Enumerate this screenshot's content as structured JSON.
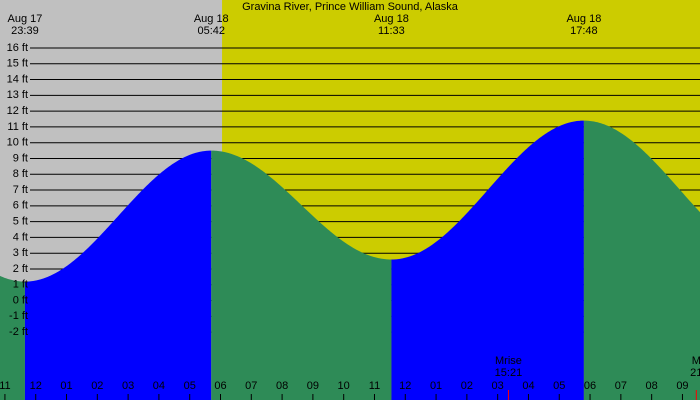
{
  "chart_data": {
    "type": "tide",
    "title": "Gravina River, Prince William Sound, Alaska",
    "xlim": [
      22.84,
      45.57
    ],
    "ylim": [
      -6.3,
      19.04
    ],
    "daylight_start": 30.05,
    "night_color": "#c0c0c0",
    "day_color": "#cccc00",
    "rising_color": "#0000ff",
    "falling_color": "#2e8b57",
    "grid": true,
    "yticks": [
      {
        "value": 16,
        "label": "16 ft"
      },
      {
        "value": 15,
        "label": "15 ft"
      },
      {
        "value": 14,
        "label": "14 ft"
      },
      {
        "value": 13,
        "label": "13 ft"
      },
      {
        "value": 12,
        "label": "12 ft"
      },
      {
        "value": 11,
        "label": "11 ft"
      },
      {
        "value": 10,
        "label": "10 ft"
      },
      {
        "value": 9,
        "label": "9 ft"
      },
      {
        "value": 8,
        "label": "8 ft"
      },
      {
        "value": 7,
        "label": "7 ft"
      },
      {
        "value": 6,
        "label": "6 ft"
      },
      {
        "value": 5,
        "label": "5 ft"
      },
      {
        "value": 4,
        "label": "4 ft"
      },
      {
        "value": 3,
        "label": "3 ft"
      },
      {
        "value": 2,
        "label": "2 ft"
      },
      {
        "value": 1,
        "label": "1 ft"
      },
      {
        "value": 0,
        "label": "0 ft"
      },
      {
        "value": -1,
        "label": "-1 ft"
      },
      {
        "value": -2,
        "label": "-2 ft"
      }
    ],
    "xticks": [
      {
        "value": 23,
        "label": "11"
      },
      {
        "value": 24,
        "label": "12"
      },
      {
        "value": 25,
        "label": "01"
      },
      {
        "value": 26,
        "label": "02"
      },
      {
        "value": 27,
        "label": "03"
      },
      {
        "value": 28,
        "label": "04"
      },
      {
        "value": 29,
        "label": "05"
      },
      {
        "value": 30,
        "label": "06"
      },
      {
        "value": 31,
        "label": "07"
      },
      {
        "value": 32,
        "label": "08"
      },
      {
        "value": 33,
        "label": "09"
      },
      {
        "value": 34,
        "label": "10"
      },
      {
        "value": 35,
        "label": "11"
      },
      {
        "value": 36,
        "label": "12"
      },
      {
        "value": 37,
        "label": "01"
      },
      {
        "value": 38,
        "label": "02"
      },
      {
        "value": 39,
        "label": "03"
      },
      {
        "value": 40,
        "label": "04"
      },
      {
        "value": 41,
        "label": "05"
      },
      {
        "value": 42,
        "label": "06"
      },
      {
        "value": 43,
        "label": "07"
      },
      {
        "value": 44,
        "label": "08"
      },
      {
        "value": 45,
        "label": "09"
      }
    ],
    "tides": [
      {
        "date": "Aug 17",
        "time": "23:39",
        "x": 23.65,
        "height": 1.2
      },
      {
        "date": "Aug 18",
        "time": "05:42",
        "x": 29.7,
        "height": 9.5
      },
      {
        "date": "Aug 18",
        "time": "11:33",
        "x": 35.55,
        "height": 2.6
      },
      {
        "date": "Aug 18",
        "time": "17:48",
        "x": 41.8,
        "height": 11.4
      }
    ],
    "moon_events": [
      {
        "label": "Mrise",
        "time": "15:21",
        "x": 39.35,
        "color": "#ff0000"
      },
      {
        "label": "M",
        "time": "21",
        "x": 45.45,
        "color": "#ff0000"
      }
    ]
  }
}
